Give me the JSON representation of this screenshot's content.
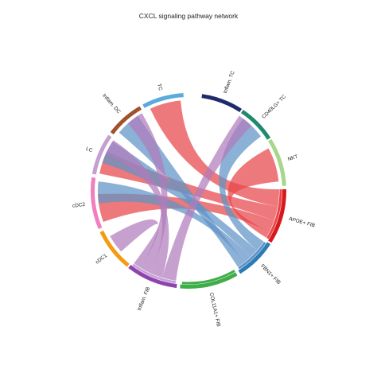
{
  "title": "CXCL signaling pathway network",
  "colors": {
    "red": "#e8454a",
    "blue": "#5f93c6",
    "purple": "#b07cbb"
  },
  "segments": [
    {
      "id": "inflam_tc",
      "label": "Inflam. TC",
      "color": "#1f2a6b"
    },
    {
      "id": "cd40lg_tc",
      "label": "CD40LG+ TC",
      "color": "#1e8a6e"
    },
    {
      "id": "nkt",
      "label": "NKT",
      "color": "#a6d78a"
    },
    {
      "id": "apoe_fib",
      "label": "APOE+ FIB",
      "color": "#d7191c"
    },
    {
      "id": "fbn1_fib",
      "label": "FBN1+ FIB",
      "color": "#2c7bb6"
    },
    {
      "id": "col11a1_fib",
      "label": "COL11A1+ FIB",
      "color": "#3fae49"
    },
    {
      "id": "inflam_fib",
      "label": "Inflam. FIB",
      "color": "#8e44ad"
    },
    {
      "id": "cdc1",
      "label": "cDC1",
      "color": "#f39c12"
    },
    {
      "id": "cdc2",
      "label": "cDC2",
      "color": "#f07fbf"
    },
    {
      "id": "lc",
      "label": "LC",
      "color": "#c3a0d0"
    },
    {
      "id": "inflam_dc",
      "label": "Inflam. DC",
      "color": "#a0522d"
    },
    {
      "id": "tc",
      "label": "TC",
      "color": "#5aaadc"
    }
  ]
}
